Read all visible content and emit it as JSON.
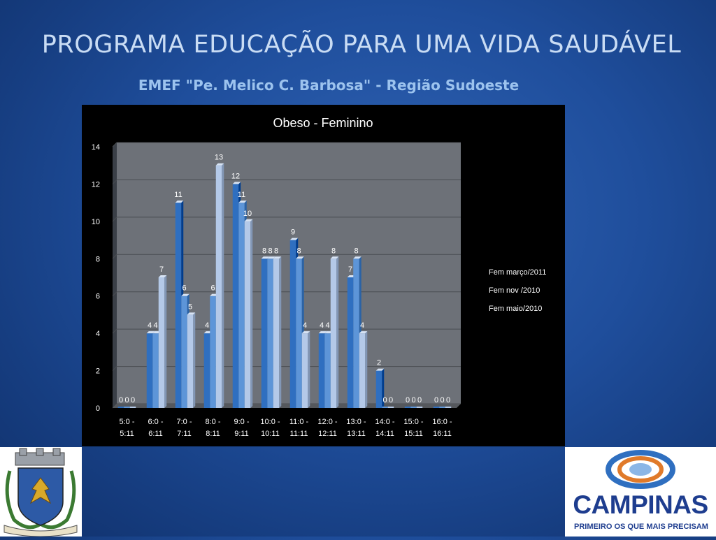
{
  "slide": {
    "title": "PROGRAMA EDUCAÇÃO PARA UMA VIDA SAUDÁVEL",
    "subtitle": "EMEF \"Pe. Melico C. Barbosa\" - Região Sudoeste"
  },
  "logos": {
    "left": "city-coat-of-arms",
    "right_word": "CAMPINAS",
    "right_tagline": "PRIMEIRO OS QUE MAIS PRECISAM"
  },
  "chart_data": {
    "type": "bar",
    "title": "Obeso - Feminino",
    "categories": [
      [
        "5:0 -",
        "5:11"
      ],
      [
        "6:0 -",
        "6:11"
      ],
      [
        "7:0 -",
        "7:11"
      ],
      [
        "8:0 -",
        "8:11"
      ],
      [
        "9:0 -",
        "9:11"
      ],
      [
        "10:0 -",
        "10:11"
      ],
      [
        "11:0 -",
        "11:11"
      ],
      [
        "12:0 -",
        "12:11"
      ],
      [
        "13:0 -",
        "13:11"
      ],
      [
        "14:0 -",
        "14:11"
      ],
      [
        "15:0 -",
        "15:11"
      ],
      [
        "16:0 -",
        "16:11"
      ]
    ],
    "series": [
      {
        "name": "Fem março/2011",
        "color": "#2f6fc0",
        "values": [
          0,
          4,
          11,
          4,
          12,
          8,
          9,
          4,
          7,
          2,
          0,
          0
        ]
      },
      {
        "name": "Fem nov /2010",
        "color": "#5d95d8",
        "values": [
          0,
          4,
          6,
          6,
          11,
          8,
          8,
          4,
          8,
          0,
          0,
          0
        ]
      },
      {
        "name": "Fem maio/2010",
        "color": "#b4c9e8",
        "values": [
          0,
          7,
          5,
          13,
          10,
          8,
          4,
          8,
          4,
          0,
          0,
          0
        ]
      }
    ],
    "ylim": [
      0,
      14
    ],
    "yticks": [
      0,
      2,
      4,
      6,
      8,
      10,
      12,
      14
    ],
    "grid": true,
    "legend_position": "right"
  }
}
